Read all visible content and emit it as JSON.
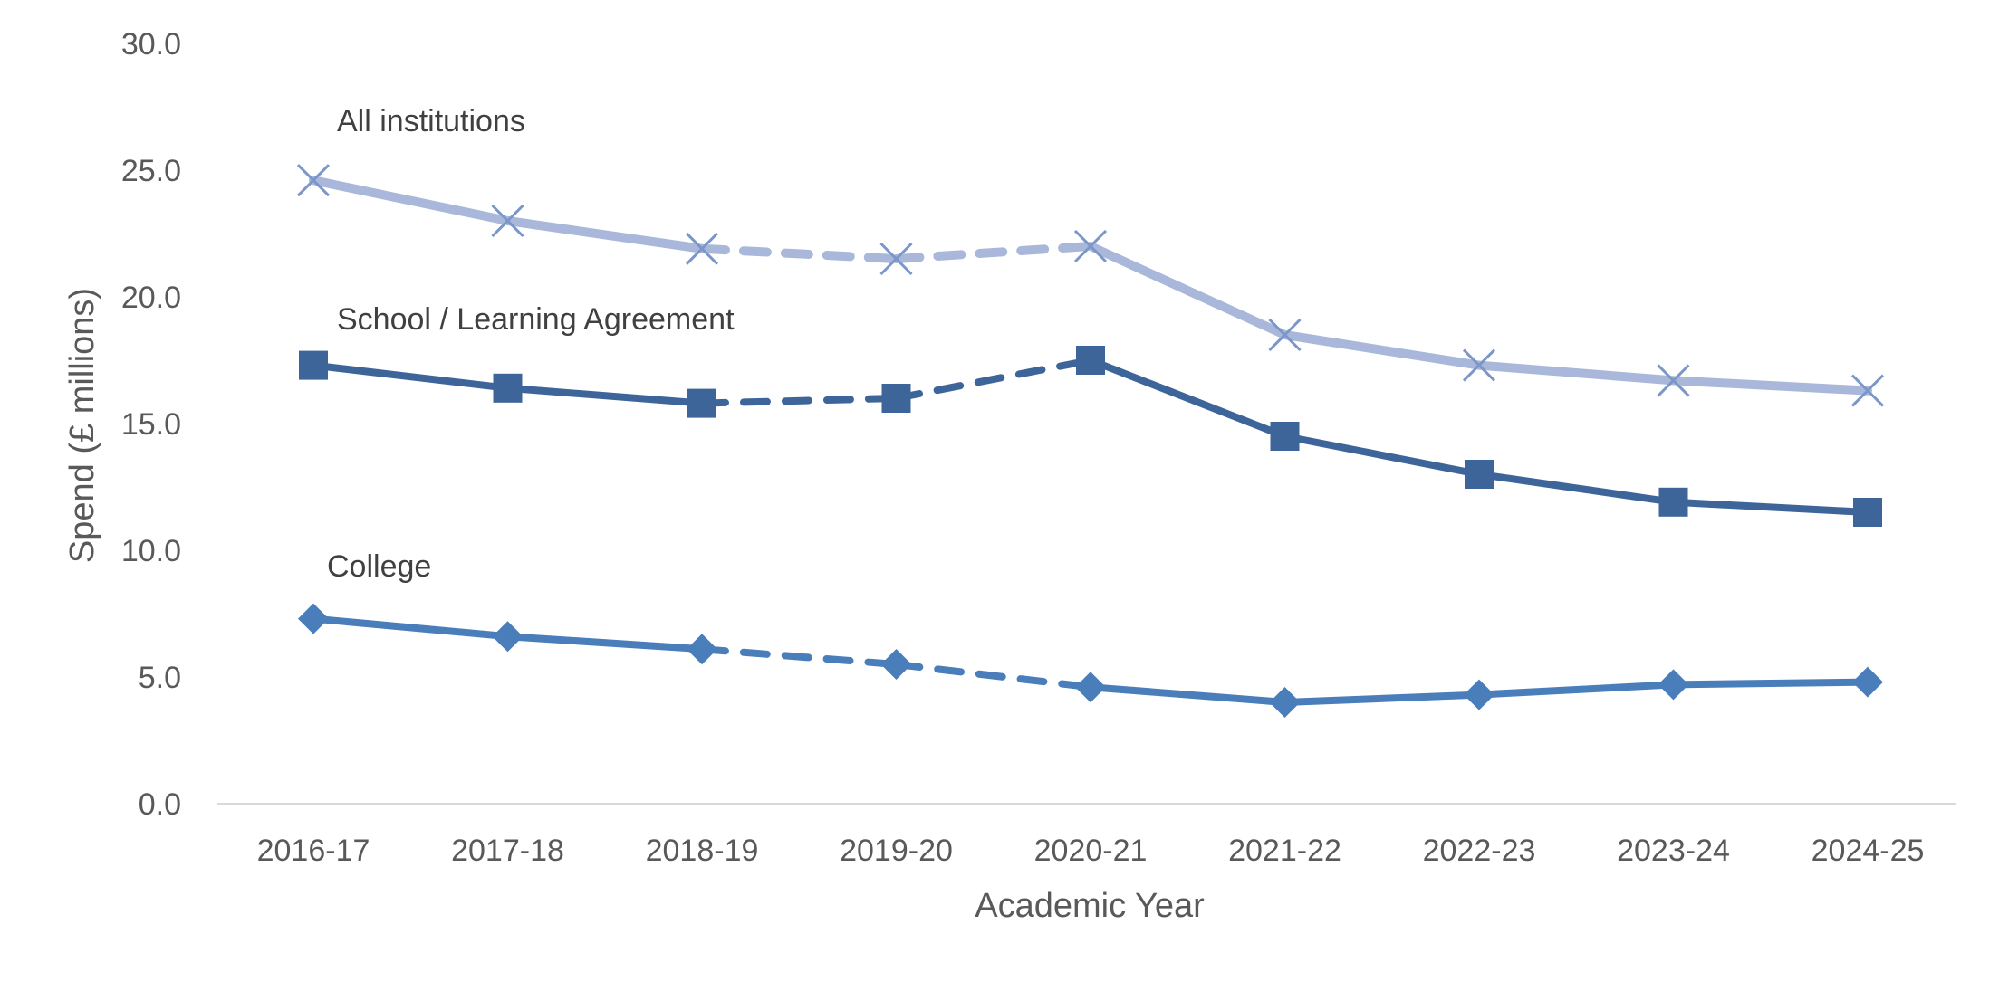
{
  "chart_data": {
    "type": "line",
    "categories": [
      "2016-17",
      "2017-18",
      "2018-19",
      "2019-20",
      "2020-21",
      "2021-22",
      "2022-23",
      "2023-24",
      "2024-25"
    ],
    "xlabel": "Academic Year",
    "ylabel": "Spend (£ millions)",
    "ylim": [
      0,
      30
    ],
    "yticks": [
      "0.0",
      "5.0",
      "10.0",
      "15.0",
      "20.0",
      "25.0",
      "30.0"
    ],
    "grid": false,
    "legend": "none",
    "dashed_segments_between": [
      "2018-19",
      "2020-21"
    ],
    "series": [
      {
        "name": "All institutions",
        "values": [
          24.6,
          23.0,
          21.9,
          21.5,
          22.0,
          18.5,
          17.3,
          16.7,
          16.3
        ],
        "color": "#a9b8da",
        "marker": "x"
      },
      {
        "name": "School / Learning Agreement",
        "values": [
          17.3,
          16.4,
          15.8,
          16.0,
          17.5,
          14.5,
          13.0,
          11.9,
          11.5
        ],
        "color": "#3d6599",
        "marker": "square"
      },
      {
        "name": "College",
        "values": [
          7.3,
          6.6,
          6.1,
          5.5,
          4.6,
          4.0,
          4.3,
          4.7,
          4.8
        ],
        "color": "#4a7ebb",
        "marker": "diamond"
      }
    ]
  }
}
